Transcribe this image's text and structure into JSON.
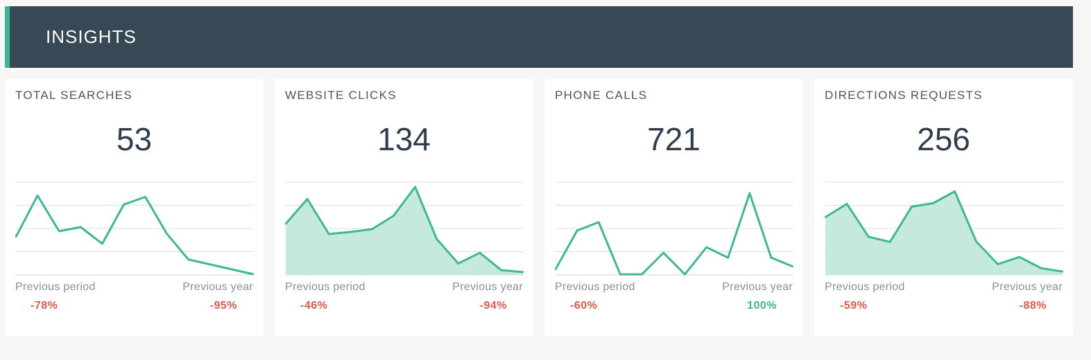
{
  "header": {
    "title": "INSIGHTS"
  },
  "colors": {
    "accent": "#3cb98f",
    "negative": "#e05a4b",
    "header_bg": "#364955",
    "area_fill": "#c5e9dd"
  },
  "cards": [
    {
      "title": "TOTAL SEARCHES",
      "value": "53",
      "prev_period_label": "Previous period",
      "prev_period_value": "-78%",
      "prev_period_status": "negative",
      "prev_year_label": "Previous year",
      "prev_year_value": "-95%",
      "prev_year_status": "negative"
    },
    {
      "title": "WEBSITE CLICKS",
      "value": "134",
      "prev_period_label": "Previous period",
      "prev_period_value": "-46%",
      "prev_period_status": "negative",
      "prev_year_label": "Previous year",
      "prev_year_value": "-94%",
      "prev_year_status": "negative"
    },
    {
      "title": "PHONE CALLS",
      "value": "721",
      "prev_period_label": "Previous period",
      "prev_period_value": "-60%",
      "prev_period_status": "negative",
      "prev_year_label": "Previous year",
      "prev_year_value": "100%",
      "prev_year_status": "positive"
    },
    {
      "title": "DIRECTIONS REQUESTS",
      "value": "256",
      "prev_period_label": "Previous period",
      "prev_period_value": "-59%",
      "prev_period_status": "negative",
      "prev_year_label": "Previous year",
      "prev_year_value": "-88%",
      "prev_year_status": "negative"
    }
  ],
  "chart_data": [
    {
      "type": "line",
      "grid": true,
      "ylim": [
        0,
        4
      ],
      "x": [
        0,
        1,
        2,
        3,
        4,
        5,
        6,
        7,
        8,
        9,
        10,
        11
      ],
      "series": [
        {
          "values": [
            1.64,
            3.42,
            1.88,
            2.06,
            1.34,
            3.03,
            3.36,
            1.77,
            0.66,
            0.45,
            0.24,
            0.03
          ]
        }
      ]
    },
    {
      "type": "area",
      "grid": true,
      "ylim": [
        0,
        4
      ],
      "x": [
        0,
        1,
        2,
        3,
        4,
        5,
        6,
        7,
        8,
        9,
        10,
        11
      ],
      "series": [
        {
          "values": [
            2.2,
            3.27,
            1.76,
            1.85,
            1.97,
            2.55,
            3.79,
            1.55,
            0.49,
            0.95,
            0.2,
            0.12
          ]
        }
      ]
    },
    {
      "type": "line",
      "grid": true,
      "ylim": [
        0,
        4
      ],
      "x": [
        0,
        1,
        2,
        3,
        4,
        5,
        6,
        7,
        8,
        9,
        10,
        11
      ],
      "series": [
        {
          "values": [
            0.24,
            1.91,
            2.27,
            0.02,
            0.02,
            0.95,
            0.02,
            1.19,
            0.74,
            3.52,
            0.74,
            0.36
          ]
        }
      ]
    },
    {
      "type": "area",
      "grid": true,
      "ylim": [
        0,
        4
      ],
      "x": [
        0,
        1,
        2,
        3,
        4,
        5,
        6,
        7,
        8,
        9,
        10,
        11
      ],
      "series": [
        {
          "values": [
            2.49,
            3.06,
            1.64,
            1.42,
            2.94,
            3.09,
            3.6,
            1.43,
            0.46,
            0.77,
            0.29,
            0.14
          ]
        }
      ]
    }
  ]
}
